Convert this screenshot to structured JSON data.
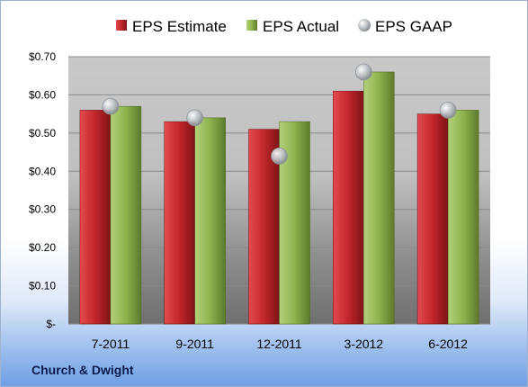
{
  "company": "Church & Dwight",
  "colors": {
    "estimate": "#c1262b",
    "actual": "#8fb24d",
    "gaap": "#b7bcc2"
  },
  "chart_data": {
    "type": "bar",
    "categories": [
      "7-2011",
      "9-2011",
      "12-2011",
      "3-2012",
      "6-2012"
    ],
    "series": [
      {
        "name": "EPS Estimate",
        "values": [
          0.56,
          0.53,
          0.51,
          0.61,
          0.55
        ]
      },
      {
        "name": "EPS Actual",
        "values": [
          0.57,
          0.54,
          0.53,
          0.66,
          0.56
        ]
      },
      {
        "name": "EPS GAAP",
        "values": [
          0.57,
          0.54,
          0.44,
          0.66,
          0.56
        ],
        "style": "marker"
      }
    ],
    "yticks": [
      "$-",
      "$0.10",
      "$0.20",
      "$0.30",
      "$0.40",
      "$0.50",
      "$0.60",
      "$0.70"
    ],
    "ylim": [
      0,
      0.7
    ],
    "legend_position": "top",
    "grid": true
  }
}
